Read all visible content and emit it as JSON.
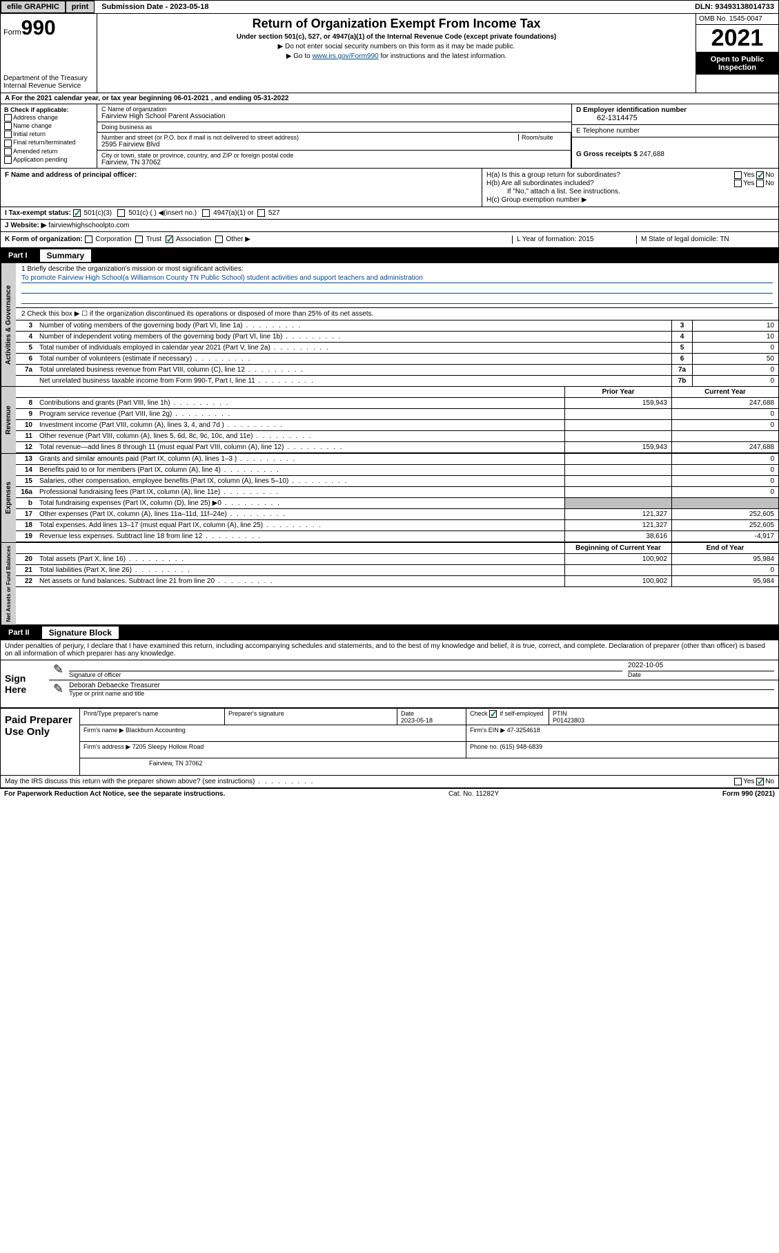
{
  "topbar": {
    "efile": "efile GRAPHIC",
    "print": "print",
    "submission": "Submission Date - 2023-05-18",
    "dln": "DLN: 93493138014733"
  },
  "header": {
    "form_prefix": "Form",
    "form_number": "990",
    "dept": "Department of the Treasury Internal Revenue Service",
    "title": "Return of Organization Exempt From Income Tax",
    "sub": "Under section 501(c), 527, or 4947(a)(1) of the Internal Revenue Code (except private foundations)",
    "note1": "▶ Do not enter social security numbers on this form as it may be made public.",
    "note2_pre": "▶ Go to ",
    "note2_link": "www.irs.gov/Form990",
    "note2_post": " for instructions and the latest information.",
    "omb": "OMB No. 1545-0047",
    "year": "2021",
    "open": "Open to Public Inspection"
  },
  "row_a": "A For the 2021 calendar year, or tax year beginning 06-01-2021  , and ending 05-31-2022",
  "col_b": {
    "title": "B Check if applicable:",
    "items": [
      "Address change",
      "Name change",
      "Initial return",
      "Final return/terminated",
      "Amended return",
      "Application pending"
    ]
  },
  "org": {
    "c_label": "C Name of organization",
    "name": "Fairview High School Parent Association",
    "dba_label": "Doing business as",
    "dba": "",
    "addr_label": "Number and street (or P.O. box if mail is not delivered to street address)",
    "room_label": "Room/suite",
    "addr": "2595 Fairview Blvd",
    "city_label": "City or town, state or province, country, and ZIP or foreign postal code",
    "city": "Fairview, TN  37062"
  },
  "right": {
    "d_label": "D Employer identification number",
    "ein": "62-1314475",
    "e_label": "E Telephone number",
    "phone": "",
    "g_label": "G Gross receipts $",
    "gross": "247,688"
  },
  "f": {
    "label": "F  Name and address of principal officer:",
    "value": ""
  },
  "h": {
    "a_label": "H(a)  Is this a group return for subordinates?",
    "b_label": "H(b)  Are all subordinates included?",
    "b_note": "If \"No,\" attach a list. See instructions.",
    "c_label": "H(c)  Group exemption number ▶"
  },
  "i": {
    "label": "I   Tax-exempt status:",
    "opts": [
      "501(c)(3)",
      "501(c) (  ) ◀(insert no.)",
      "4947(a)(1) or",
      "527"
    ]
  },
  "j": {
    "label": "J   Website: ▶",
    "value": "fairviewhighschoolpto.com"
  },
  "k": {
    "label": "K Form of organization:",
    "opts": [
      "Corporation",
      "Trust",
      "Association",
      "Other ▶"
    ],
    "l": "L Year of formation: 2015",
    "m": "M State of legal domicile: TN"
  },
  "part1": {
    "num": "Part I",
    "title": "Summary",
    "briefly": "1  Briefly describe the organization's mission or most significant activities:",
    "mission": "To promote Fairview High School(a Williamson County TN Public School) student activities and support teachers and administration",
    "line2": "2   Check this box ▶ ☐  if the organization discontinued its operations or disposed of more than 25% of its net assets.",
    "gov_lines": [
      {
        "n": "3",
        "t": "Number of voting members of the governing body (Part VI, line 1a)",
        "box": "3",
        "v": "10"
      },
      {
        "n": "4",
        "t": "Number of independent voting members of the governing body (Part VI, line 1b)",
        "box": "4",
        "v": "10"
      },
      {
        "n": "5",
        "t": "Total number of individuals employed in calendar year 2021 (Part V, line 2a)",
        "box": "5",
        "v": "0"
      },
      {
        "n": "6",
        "t": "Total number of volunteers (estimate if necessary)",
        "box": "6",
        "v": "50"
      },
      {
        "n": "7a",
        "t": "Total unrelated business revenue from Part VIII, column (C), line 12",
        "box": "7a",
        "v": "0"
      },
      {
        "n": "",
        "t": "Net unrelated business taxable income from Form 990-T, Part I, line 11",
        "box": "7b",
        "v": "0"
      }
    ],
    "prior_label": "Prior Year",
    "curr_label": "Current Year",
    "rev_lines": [
      {
        "n": "8",
        "t": "Contributions and grants (Part VIII, line 1h)",
        "p": "159,943",
        "c": "247,688"
      },
      {
        "n": "9",
        "t": "Program service revenue (Part VIII, line 2g)",
        "p": "",
        "c": "0"
      },
      {
        "n": "10",
        "t": "Investment income (Part VIII, column (A), lines 3, 4, and 7d )",
        "p": "",
        "c": "0"
      },
      {
        "n": "11",
        "t": "Other revenue (Part VIII, column (A), lines 5, 6d, 8c, 9c, 10c, and 11e)",
        "p": "",
        "c": ""
      },
      {
        "n": "12",
        "t": "Total revenue—add lines 8 through 11 (must equal Part VIII, column (A), line 12)",
        "p": "159,943",
        "c": "247,688"
      }
    ],
    "exp_lines": [
      {
        "n": "13",
        "t": "Grants and similar amounts paid (Part IX, column (A), lines 1–3 )",
        "p": "",
        "c": "0"
      },
      {
        "n": "14",
        "t": "Benefits paid to or for members (Part IX, column (A), line 4)",
        "p": "",
        "c": "0"
      },
      {
        "n": "15",
        "t": "Salaries, other compensation, employee benefits (Part IX, column (A), lines 5–10)",
        "p": "",
        "c": "0"
      },
      {
        "n": "16a",
        "t": "Professional fundraising fees (Part IX, column (A), line 11e)",
        "p": "",
        "c": "0"
      },
      {
        "n": "b",
        "t": "Total fundraising expenses (Part IX, column (D), line 25) ▶0",
        "p": "shade",
        "c": "shade"
      },
      {
        "n": "17",
        "t": "Other expenses (Part IX, column (A), lines 11a–11d, 11f–24e)",
        "p": "121,327",
        "c": "252,605"
      },
      {
        "n": "18",
        "t": "Total expenses. Add lines 13–17 (must equal Part IX, column (A), line 25)",
        "p": "121,327",
        "c": "252,605"
      },
      {
        "n": "19",
        "t": "Revenue less expenses. Subtract line 18 from line 12",
        "p": "38,616",
        "c": "-4,917"
      }
    ],
    "begin_label": "Beginning of Current Year",
    "end_label": "End of Year",
    "net_lines": [
      {
        "n": "20",
        "t": "Total assets (Part X, line 16)",
        "p": "100,902",
        "c": "95,984"
      },
      {
        "n": "21",
        "t": "Total liabilities (Part X, line 26)",
        "p": "",
        "c": "0"
      },
      {
        "n": "22",
        "t": "Net assets or fund balances. Subtract line 21 from line 20",
        "p": "100,902",
        "c": "95,984"
      }
    ],
    "side_gov": "Activities & Governance",
    "side_rev": "Revenue",
    "side_exp": "Expenses",
    "side_net": "Net Assets or Fund Balances"
  },
  "part2": {
    "num": "Part II",
    "title": "Signature Block",
    "decl": "Under penalties of perjury, I declare that I have examined this return, including accompanying schedules and statements, and to the best of my knowledge and belief, it is true, correct, and complete. Declaration of preparer (other than officer) is based on all information of which preparer has any knowledge.",
    "sign_here": "Sign Here",
    "sig_officer": "Signature of officer",
    "date": "Date",
    "sig_date": "2022-10-05",
    "name_title": "Deborah Debaecke Treasurer",
    "type_label": "Type or print name and title",
    "paid": "Paid Preparer Use Only",
    "h_print": "Print/Type preparer's name",
    "h_sig": "Preparer's signature",
    "h_date": "Date",
    "h_date_v": "2023-05-18",
    "h_check": "Check ☑ if self-employed",
    "h_ptin": "PTIN",
    "ptin": "P01423803",
    "firm_name_l": "Firm's name   ▶",
    "firm_name": "Blackburn Accounting",
    "firm_ein_l": "Firm's EIN ▶",
    "firm_ein": "47-3254618",
    "firm_addr_l": "Firm's address ▶",
    "firm_addr1": "7205 Sleepy Hollow Road",
    "firm_addr2": "Fairview, TN  37062",
    "phone_l": "Phone no.",
    "phone": "(615) 948-6839",
    "irs_q": "May the IRS discuss this return with the preparer shown above? (see instructions)"
  },
  "footer": {
    "left": "For Paperwork Reduction Act Notice, see the separate instructions.",
    "mid": "Cat. No. 11282Y",
    "right": "Form 990 (2021)"
  }
}
